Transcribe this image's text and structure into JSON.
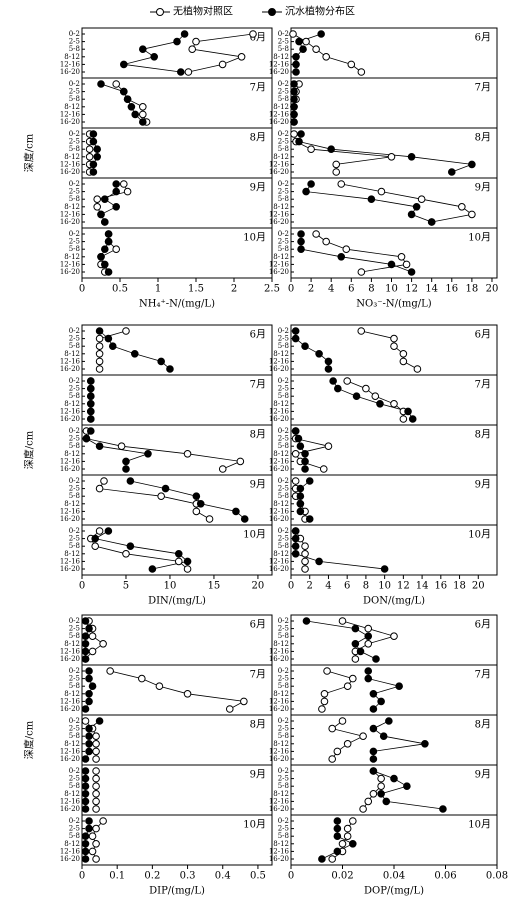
{
  "legend": [
    {
      "name": "无植物对照区",
      "fill": "#ffffff"
    },
    {
      "name": "沉水植物分布区",
      "fill": "#000000"
    }
  ],
  "ylabel": "深度/cm",
  "chart_data": [
    {
      "type": "line",
      "xlabel": "NH₄⁺-N/(mg/L)",
      "xlim": [
        0,
        2.5
      ],
      "xticks": [
        0,
        0.5,
        1,
        1.5,
        2,
        2.5
      ],
      "categories": [
        "0-2",
        "2-5",
        "5-8",
        "8-12",
        "12-16",
        "16-20"
      ],
      "panels": [
        {
          "label": "6月",
          "series": [
            {
              "values": [
                2.25,
                1.5,
                1.45,
                2.1,
                1.85,
                1.4
              ]
            },
            {
              "values": [
                1.35,
                1.25,
                0.8,
                0.95,
                0.55,
                1.3
              ]
            }
          ]
        },
        {
          "label": "7月",
          "series": [
            {
              "values": [
                0.45,
                0.55,
                0.6,
                0.8,
                0.8,
                0.85
              ]
            },
            {
              "values": [
                0.25,
                0.55,
                0.6,
                0.65,
                0.7,
                0.8
              ]
            }
          ]
        },
        {
          "label": "8月",
          "series": [
            {
              "values": [
                0.1,
                0.1,
                0.1,
                0.1,
                0.1,
                0.1
              ]
            },
            {
              "values": [
                0.15,
                0.15,
                0.2,
                0.2,
                0.15,
                0.15
              ]
            }
          ]
        },
        {
          "label": "9月",
          "series": [
            {
              "values": [
                0.55,
                0.6,
                0.2,
                0.2,
                0.25,
                0.3
              ]
            },
            {
              "values": [
                0.45,
                0.45,
                0.3,
                0.45,
                0.25,
                0.3
              ]
            }
          ]
        },
        {
          "label": "10月",
          "series": [
            {
              "values": [
                0.35,
                0.35,
                0.45,
                0.25,
                0.25,
                0.3
              ]
            },
            {
              "values": [
                0.35,
                0.35,
                0.3,
                0.25,
                0.3,
                0.35
              ]
            }
          ]
        }
      ]
    },
    {
      "type": "line",
      "xlabel": "NO₃⁻-N/(mg/L)",
      "xlim": [
        0,
        20.5
      ],
      "xticks": [
        0,
        2,
        4,
        6,
        8,
        10,
        12,
        14,
        16,
        18,
        20
      ],
      "categories": [
        "0-2",
        "2-5",
        "5-8",
        "8-12",
        "12-16",
        "16-20"
      ],
      "panels": [
        {
          "label": "6月",
          "series": [
            {
              "values": [
                0.2,
                1.5,
                2.5,
                3.5,
                6,
                7
              ]
            },
            {
              "values": [
                3,
                0.8,
                1.2,
                0.5,
                0.5,
                0.5
              ]
            }
          ]
        },
        {
          "label": "7月",
          "series": [
            {
              "values": [
                0.8,
                0.5,
                0.5,
                0.3,
                0.3,
                0.3
              ]
            },
            {
              "values": [
                0.3,
                0.3,
                0.3,
                0.3,
                0.3,
                0.3
              ]
            }
          ]
        },
        {
          "label": "8月",
          "series": [
            {
              "values": [
                0.3,
                0.5,
                2,
                10,
                4.5,
                4.5
              ]
            },
            {
              "values": [
                1,
                0.8,
                4,
                12,
                18,
                16
              ]
            }
          ]
        },
        {
          "label": "9月",
          "series": [
            {
              "values": [
                5,
                9,
                13,
                17,
                18,
                14
              ]
            },
            {
              "values": [
                2,
                1.5,
                8,
                12.5,
                12,
                14
              ]
            }
          ]
        },
        {
          "label": "10月",
          "series": [
            {
              "values": [
                2.5,
                3.5,
                5.5,
                11,
                11.5,
                7
              ]
            },
            {
              "values": [
                1,
                1,
                1,
                5,
                10,
                12
              ]
            }
          ]
        }
      ]
    },
    {
      "type": "line",
      "xlabel": "DIN/(mg/L)",
      "xlim": [
        0,
        21.6
      ],
      "xticks": [
        0,
        5,
        10,
        15,
        20
      ],
      "categories": [
        "0-2",
        "2-5",
        "5-8",
        "8-12",
        "12-16",
        "16-20"
      ],
      "panels": [
        {
          "label": "6月",
          "series": [
            {
              "values": [
                5,
                2,
                2,
                2,
                2,
                2
              ]
            },
            {
              "values": [
                2,
                3,
                3.5,
                6,
                9,
                10
              ]
            }
          ]
        },
        {
          "label": "7月",
          "series": [
            {
              "values": [
                1,
                1,
                1,
                1,
                1,
                1
              ]
            },
            {
              "values": [
                1,
                1,
                1,
                1,
                1,
                1
              ]
            }
          ]
        },
        {
          "label": "8月",
          "series": [
            {
              "values": [
                0.5,
                0.5,
                4.5,
                12,
                18,
                16
              ]
            },
            {
              "values": [
                1,
                0.5,
                2,
                7.5,
                5,
                5
              ]
            }
          ]
        },
        {
          "label": "9月",
          "series": [
            {
              "values": [
                2.5,
                2,
                9,
                13,
                13,
                14.5
              ]
            },
            {
              "values": [
                5.5,
                9.5,
                13,
                13.5,
                17.5,
                18.5
              ]
            }
          ]
        },
        {
          "label": "10月",
          "series": [
            {
              "values": [
                2,
                1,
                1.5,
                5,
                11,
                12
              ]
            },
            {
              "values": [
                3,
                1.5,
                5.5,
                11,
                12,
                8
              ]
            }
          ]
        }
      ]
    },
    {
      "type": "line",
      "xlabel": "DON/(mg/L)",
      "xlim": [
        0,
        22
      ],
      "xticks": [
        0,
        2,
        4,
        6,
        8,
        10,
        12,
        14,
        16,
        18,
        20
      ],
      "categories": [
        "0-2",
        "2-5",
        "5-8",
        "8-12",
        "12-16",
        "16-20"
      ],
      "panels": [
        {
          "label": "6月",
          "series": [
            {
              "values": [
                7.5,
                11,
                11,
                12,
                12,
                13.5
              ]
            },
            {
              "values": [
                0.5,
                0.5,
                1.5,
                3,
                4,
                4
              ]
            }
          ]
        },
        {
          "label": "7月",
          "series": [
            {
              "values": [
                6,
                8,
                9,
                11,
                12,
                12
              ]
            },
            {
              "values": [
                4.5,
                5,
                7,
                9.5,
                12.5,
                13
              ]
            }
          ]
        },
        {
          "label": "8月",
          "series": [
            {
              "values": [
                0.5,
                0.5,
                4,
                0.5,
                1,
                3.5
              ]
            },
            {
              "values": [
                0.5,
                0.8,
                1,
                1.5,
                1.5,
                1.5
              ]
            }
          ]
        },
        {
          "label": "9月",
          "series": [
            {
              "values": [
                0.5,
                0.5,
                0.5,
                1,
                1.5,
                1.5
              ]
            },
            {
              "values": [
                2,
                1,
                1,
                1,
                1,
                2
              ]
            }
          ]
        },
        {
          "label": "10月",
          "series": [
            {
              "values": [
                0.5,
                1,
                1.5,
                1.5,
                1.5,
                1.5
              ]
            },
            {
              "values": [
                0.5,
                0.5,
                0.5,
                0.5,
                3,
                10
              ]
            }
          ]
        }
      ]
    },
    {
      "type": "line",
      "xlabel": "DIP/(mg/L)",
      "xlim": [
        0,
        0.54
      ],
      "xticks": [
        0,
        0.1,
        0.2,
        0.3,
        0.4,
        0.5
      ],
      "categories": [
        "0-2",
        "2-5",
        "5-8",
        "8-12",
        "12-16",
        "16-20"
      ],
      "panels": [
        {
          "label": "6月",
          "series": [
            {
              "values": [
                0.02,
                0.03,
                0.03,
                0.06,
                0.03,
                0.01
              ]
            },
            {
              "values": [
                0.01,
                0.02,
                0.01,
                0.01,
                0.01,
                0.01
              ]
            }
          ]
        },
        {
          "label": "7月",
          "series": [
            {
              "values": [
                0.08,
                0.17,
                0.22,
                0.3,
                0.46,
                0.42
              ]
            },
            {
              "values": [
                0.02,
                0.02,
                0.03,
                0.02,
                0.02,
                0.01
              ]
            }
          ]
        },
        {
          "label": "8月",
          "series": [
            {
              "values": [
                0.01,
                0.03,
                0.04,
                0.04,
                0.04,
                0.04
              ]
            },
            {
              "values": [
                0.05,
                0.02,
                0.02,
                0.02,
                0.02,
                0.01
              ]
            }
          ]
        },
        {
          "label": "9月",
          "series": [
            {
              "values": [
                0.04,
                0.04,
                0.04,
                0.04,
                0.04,
                0.04
              ]
            },
            {
              "values": [
                0.01,
                0.01,
                0.01,
                0.01,
                0.01,
                0.01
              ]
            }
          ]
        },
        {
          "label": "10月",
          "series": [
            {
              "values": [
                0.06,
                0.04,
                0.03,
                0.04,
                0.03,
                0.04
              ]
            },
            {
              "values": [
                0.02,
                0.02,
                0.01,
                0.01,
                0.01,
                0.01
              ]
            }
          ]
        }
      ]
    },
    {
      "type": "line",
      "xlabel": "DOP/(mg/L)",
      "xlim": [
        0,
        0.08
      ],
      "xticks": [
        0,
        0.02,
        0.04,
        0.06,
        0.08
      ],
      "categories": [
        "0-2",
        "2-5",
        "5-8",
        "8-12",
        "12-16",
        "16-20"
      ],
      "panels": [
        {
          "label": "6月",
          "series": [
            {
              "values": [
                0.02,
                0.03,
                0.04,
                0.03,
                0.025,
                0.025
              ]
            },
            {
              "values": [
                0.006,
                0.025,
                0.03,
                0.025,
                0.027,
                0.033
              ]
            }
          ]
        },
        {
          "label": "7月",
          "series": [
            {
              "values": [
                0.014,
                0.024,
                0.022,
                0.013,
                0.013,
                0.012
              ]
            },
            {
              "values": [
                0.03,
                0.03,
                0.042,
                0.032,
                0.035,
                0.032
              ]
            }
          ]
        },
        {
          "label": "8月",
          "series": [
            {
              "values": [
                0.02,
                0.016,
                0.028,
                0.022,
                0.018,
                0.016
              ]
            },
            {
              "values": [
                0.038,
                0.032,
                0.036,
                0.052,
                0.032,
                0.032
              ]
            }
          ]
        },
        {
          "label": "9月",
          "series": [
            {
              "values": [
                0.032,
                0.035,
                0.035,
                0.032,
                0.03,
                0.028
              ]
            },
            {
              "values": [
                0.032,
                0.04,
                0.045,
                0.035,
                0.037,
                0.059
              ]
            }
          ]
        },
        {
          "label": "10月",
          "series": [
            {
              "values": [
                0.024,
                0.022,
                0.022,
                0.02,
                0.02,
                0.016
              ]
            },
            {
              "values": [
                0.018,
                0.018,
                0.018,
                0.024,
                0.018,
                0.012
              ]
            }
          ]
        }
      ]
    }
  ]
}
